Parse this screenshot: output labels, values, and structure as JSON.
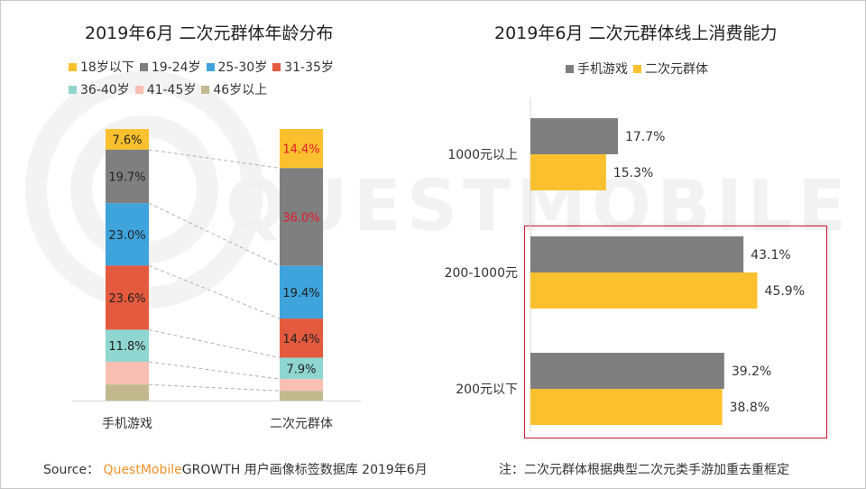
{
  "footer": {
    "source_prefix": "Source：",
    "brand": "QuestMobile",
    "source_rest": "GROWTH 用户画像标签数据库 2019年6月",
    "note": "注：二次元群体根据典型二次元类手游加重去重框定"
  },
  "watermark": "QUESTMOBILE",
  "colors": {
    "yellow": "#fbc02d",
    "gray": "#7f7f7f",
    "blue": "#3fa3dc",
    "red": "#e45a3e",
    "teal": "#8fd5d0",
    "pink": "#f9bfb3",
    "khaki": "#c3b98e",
    "highlight_border": "#d0183a",
    "emphasis_label": "#e8192c"
  },
  "chart_data": [
    {
      "type": "bar",
      "stacked": true,
      "orientation": "vertical",
      "normalized": "percent",
      "title": "2019年6月 二次元群体年龄分布",
      "categories": [
        "手机游戏",
        "二次元群体"
      ],
      "legend_position": "top",
      "series": [
        {
          "name": "18岁以下",
          "color": "#fbc02d",
          "values": [
            7.6,
            14.4
          ],
          "labels": [
            "7.6%",
            "14.4%"
          ]
        },
        {
          "name": "19-24岁",
          "color": "#7f7f7f",
          "values": [
            19.7,
            36.0
          ],
          "labels": [
            "19.7%",
            "36.0%"
          ]
        },
        {
          "name": "25-30岁",
          "color": "#3fa3dc",
          "values": [
            23.0,
            19.4
          ],
          "labels": [
            "23.0%",
            "19.4%"
          ]
        },
        {
          "name": "31-35岁",
          "color": "#e45a3e",
          "values": [
            23.6,
            14.4
          ],
          "labels": [
            "23.6%",
            "14.4%"
          ]
        },
        {
          "name": "36-40岁",
          "color": "#8fd5d0",
          "values": [
            11.8,
            7.9
          ],
          "labels": [
            "11.8%",
            "7.9%"
          ]
        },
        {
          "name": "41-45岁",
          "color": "#f9bfb3",
          "values": [
            8.4,
            4.3
          ],
          "labels": [
            "",
            ""
          ]
        },
        {
          "name": "46岁以上",
          "color": "#c3b98e",
          "values": [
            5.9,
            3.6
          ],
          "labels": [
            "",
            ""
          ]
        }
      ],
      "emphasized_labels": [
        "14.4%",
        "36.0%"
      ],
      "connector_lines": "dashed",
      "xlabel": "",
      "ylabel": ""
    },
    {
      "type": "bar",
      "orientation": "horizontal",
      "title": "2019年6月 二次元群体线上消费能力",
      "categories": [
        "1000元以上",
        "200-1000元",
        "200元以下"
      ],
      "legend_position": "top",
      "series": [
        {
          "name": "手机游戏",
          "color": "#7f7f7f",
          "values": [
            17.7,
            43.1,
            39.2
          ],
          "labels": [
            "17.7%",
            "43.1%",
            "39.2%"
          ]
        },
        {
          "name": "二次元群体",
          "color": "#fbc02d",
          "values": [
            15.3,
            45.9,
            38.8
          ],
          "labels": [
            "15.3%",
            "45.9%",
            "38.8%"
          ]
        }
      ],
      "highlighted_categories": [
        "200-1000元",
        "200元以下"
      ],
      "xlabel": "",
      "ylabel": ""
    }
  ]
}
